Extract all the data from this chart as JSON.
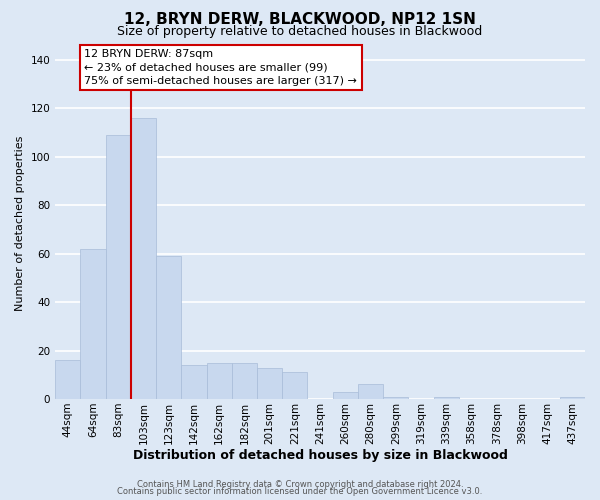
{
  "title": "12, BRYN DERW, BLACKWOOD, NP12 1SN",
  "subtitle": "Size of property relative to detached houses in Blackwood",
  "xlabel": "Distribution of detached houses by size in Blackwood",
  "ylabel": "Number of detached properties",
  "bin_labels": [
    "44sqm",
    "64sqm",
    "83sqm",
    "103sqm",
    "123sqm",
    "142sqm",
    "162sqm",
    "182sqm",
    "201sqm",
    "221sqm",
    "241sqm",
    "260sqm",
    "280sqm",
    "299sqm",
    "319sqm",
    "339sqm",
    "358sqm",
    "378sqm",
    "398sqm",
    "417sqm",
    "437sqm"
  ],
  "bar_values": [
    16,
    62,
    109,
    116,
    59,
    14,
    15,
    15,
    13,
    11,
    0,
    3,
    6,
    1,
    0,
    1,
    0,
    0,
    0,
    0,
    1
  ],
  "bar_color": "#c8d8ee",
  "bar_edge_color": "#a8bcd8",
  "ylim": [
    0,
    145
  ],
  "yticks": [
    0,
    20,
    40,
    60,
    80,
    100,
    120,
    140
  ],
  "vline_index": 2,
  "marker_label": "12 BRYN DERW: 87sqm",
  "annotation_line1": "← 23% of detached houses are smaller (99)",
  "annotation_line2": "75% of semi-detached houses are larger (317) →",
  "box_facecolor": "#ffffff",
  "box_edgecolor": "#cc0000",
  "vline_color": "#cc0000",
  "footer1": "Contains HM Land Registry data © Crown copyright and database right 2024.",
  "footer2": "Contains public sector information licensed under the Open Government Licence v3.0.",
  "background_color": "#dde8f5",
  "grid_color": "#ffffff",
  "title_fontsize": 11,
  "subtitle_fontsize": 9,
  "xlabel_fontsize": 9,
  "ylabel_fontsize": 8,
  "tick_fontsize": 7.5,
  "annotation_fontsize": 8,
  "footer_fontsize": 6
}
